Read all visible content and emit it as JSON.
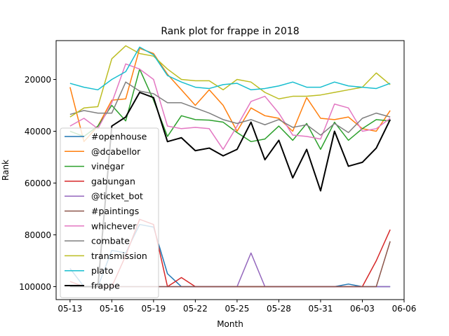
{
  "chart_data": {
    "type": "line",
    "title": "Rank plot for frappe in 2018",
    "xlabel": "Month",
    "ylabel": "Rank",
    "y_inverted": true,
    "ylim": [
      105000,
      5000
    ],
    "xlim": [
      "2018-05-12",
      "2018-06-06"
    ],
    "x_ticks": [
      "05-13",
      "05-16",
      "05-19",
      "05-22",
      "05-25",
      "05-28",
      "05-31",
      "06-03",
      "06-06"
    ],
    "y_ticks": [
      20000,
      40000,
      60000,
      80000,
      100000
    ],
    "grid": false,
    "legend_position": "lower-left",
    "x": [
      "2018-05-13",
      "2018-05-14",
      "2018-05-15",
      "2018-05-16",
      "2018-05-17",
      "2018-05-18",
      "2018-05-19",
      "2018-05-20",
      "2018-05-21",
      "2018-05-22",
      "2018-05-23",
      "2018-05-24",
      "2018-05-25",
      "2018-05-26",
      "2018-05-27",
      "2018-05-28",
      "2018-05-29",
      "2018-05-30",
      "2018-05-31",
      "2018-06-01",
      "2018-06-02",
      "2018-06-03",
      "2018-06-04",
      "2018-06-05"
    ],
    "series": [
      {
        "name": "#openhouse",
        "color": "#1f77b4",
        "values": [
          93000,
          100000,
          100000,
          86000,
          87000,
          76000,
          77000,
          95000,
          100000,
          100000,
          100000,
          100000,
          100000,
          100000,
          100000,
          100000,
          100000,
          100000,
          100000,
          100000,
          99000,
          100000,
          100000,
          100000
        ]
      },
      {
        "name": "@dcabellor",
        "color": "#ff7f0e",
        "values": [
          23000,
          44000,
          38000,
          28000,
          27500,
          8000,
          10000,
          18000,
          24000,
          30000,
          24000,
          30000,
          40000,
          31000,
          34000,
          35000,
          40000,
          27000,
          35000,
          35500,
          34500,
          39000,
          40000,
          32000
        ]
      },
      {
        "name": "vinegar",
        "color": "#2ca02c",
        "values": [
          40000,
          42000,
          38000,
          30000,
          36000,
          16000,
          28000,
          42000,
          34000,
          35500,
          35700,
          36500,
          40500,
          44000,
          43000,
          38000,
          43500,
          37000,
          47000,
          36500,
          43500,
          39000,
          35500,
          36000
        ]
      },
      {
        "name": "gabungan",
        "color": "#d62728",
        "values": [
          98000,
          100000,
          100000,
          100000,
          88000,
          74000,
          76000,
          100000,
          96500,
          100000,
          100000,
          100000,
          100000,
          100000,
          100000,
          100000,
          100000,
          100000,
          100000,
          100000,
          100000,
          100000,
          90000,
          78000
        ]
      },
      {
        "name": "@ticket_bot",
        "color": "#9467bd",
        "values": [
          100000,
          100000,
          100000,
          100000,
          100000,
          100000,
          100000,
          100000,
          100000,
          100000,
          100000,
          100000,
          100000,
          87000,
          100000,
          100000,
          100000,
          100000,
          100000,
          100000,
          100000,
          100000,
          100000,
          100000
        ]
      },
      {
        "name": "#paintings",
        "color": "#8c564b",
        "values": [
          100000,
          100000,
          100000,
          100000,
          100000,
          100000,
          100000,
          100000,
          100000,
          100000,
          100000,
          100000,
          100000,
          100000,
          100000,
          100000,
          100000,
          100000,
          100000,
          100000,
          100000,
          100000,
          100000,
          82500
        ]
      },
      {
        "name": "whichever",
        "color": "#e377c2",
        "values": [
          38000,
          35000,
          39000,
          29000,
          14000,
          16000,
          20000,
          38000,
          39000,
          38500,
          39000,
          47000,
          38000,
          28500,
          26500,
          33000,
          41500,
          42000,
          43000,
          29500,
          31000,
          40000,
          39000,
          35000
        ]
      },
      {
        "name": "combate",
        "color": "#7f7f7f",
        "values": [
          33500,
          32000,
          33000,
          33000,
          21000,
          24500,
          25500,
          29000,
          29000,
          31000,
          33000,
          35500,
          37000,
          35500,
          37500,
          35500,
          38500,
          37500,
          41500,
          37000,
          40500,
          35000,
          33000,
          34500
        ]
      },
      {
        "name": "transmission",
        "color": "#bcbd22",
        "values": [
          34500,
          31000,
          30500,
          12000,
          7000,
          10000,
          11000,
          16000,
          20000,
          20500,
          20500,
          24000,
          20000,
          21000,
          25000,
          27500,
          26500,
          26500,
          26000,
          25000,
          24000,
          23000,
          17500,
          22000
        ]
      },
      {
        "name": "plato",
        "color": "#17becf",
        "values": [
          21500,
          23000,
          24000,
          20000,
          17000,
          7500,
          10500,
          18500,
          21000,
          23000,
          23500,
          22000,
          21500,
          24000,
          23500,
          22500,
          21000,
          23000,
          23000,
          21000,
          22500,
          23000,
          23500,
          21500
        ]
      },
      {
        "name": "frappe",
        "color": "#000000",
        "values": [
          100000,
          100000,
          100000,
          38000,
          34500,
          25000,
          27000,
          44000,
          42500,
          47500,
          46500,
          49500,
          47000,
          36500,
          51000,
          43500,
          58000,
          47000,
          63000,
          40000,
          53500,
          52000,
          46500,
          35500
        ]
      }
    ]
  }
}
